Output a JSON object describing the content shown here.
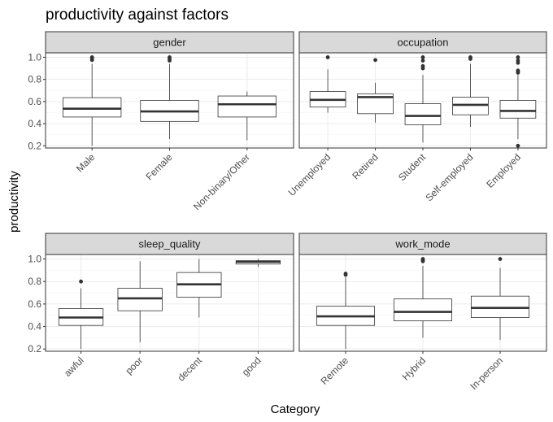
{
  "chart_data": {
    "type": "boxplot",
    "title": "productivity against factors",
    "xlabel": "Category",
    "ylabel": "productivity",
    "ylim": [
      0.18,
      1.04
    ],
    "yticks": [
      0.2,
      0.4,
      0.6,
      0.8,
      1.0
    ],
    "ytick_labels": [
      "0.2",
      "0.4",
      "0.6",
      "0.8",
      "1.0"
    ],
    "layout": "2x2 facets",
    "grid": true,
    "colors": {
      "strip_bg": "#d9d9d9",
      "grid_major": "#ebebeb",
      "grid_minor": "#f5f5f5",
      "panel_border": "#333333",
      "box_line": "#333333",
      "median": "#333333"
    },
    "facets": [
      {
        "name": "gender",
        "categories": [
          {
            "label": "Male",
            "whisker_low": 0.2,
            "q1": 0.46,
            "median": 0.535,
            "q3": 0.635,
            "whisker_high": 0.94,
            "outliers": [
              0.975,
              0.99,
              1.0
            ]
          },
          {
            "label": "Female",
            "whisker_low": 0.26,
            "q1": 0.42,
            "median": 0.51,
            "q3": 0.61,
            "whisker_high": 0.94,
            "outliers": [
              0.97,
              0.985,
              1.0
            ]
          },
          {
            "label": "Non-binary/Other",
            "whisker_low": 0.25,
            "q1": 0.46,
            "median": 0.575,
            "q3": 0.65,
            "whisker_high": 0.69,
            "outliers": []
          }
        ]
      },
      {
        "name": "occupation",
        "categories": [
          {
            "label": "Unemployed",
            "whisker_low": 0.5,
            "q1": 0.55,
            "median": 0.615,
            "q3": 0.69,
            "whisker_high": 0.89,
            "outliers": [
              1.0
            ]
          },
          {
            "label": "Retired",
            "whisker_low": 0.41,
            "q1": 0.49,
            "median": 0.64,
            "q3": 0.67,
            "whisker_high": 0.77,
            "outliers": [
              0.975
            ]
          },
          {
            "label": "Student",
            "whisker_low": 0.23,
            "q1": 0.39,
            "median": 0.47,
            "q3": 0.58,
            "whisker_high": 0.84,
            "outliers": [
              0.9,
              0.92,
              0.97,
              1.0
            ]
          },
          {
            "label": "Self-employed",
            "whisker_low": 0.37,
            "q1": 0.48,
            "median": 0.57,
            "q3": 0.64,
            "whisker_high": 0.94,
            "outliers": [
              0.985,
              1.0
            ]
          },
          {
            "label": "Employed",
            "whisker_low": 0.26,
            "q1": 0.45,
            "median": 0.515,
            "q3": 0.61,
            "whisker_high": 0.84,
            "outliers": [
              0.2,
              0.86,
              0.875,
              0.88,
              0.95,
              0.97,
              1.0
            ]
          }
        ]
      },
      {
        "name": "sleep_quality",
        "categories": [
          {
            "label": "awful",
            "whisker_low": 0.2,
            "q1": 0.41,
            "median": 0.48,
            "q3": 0.56,
            "whisker_high": 0.74,
            "outliers": [
              0.8
            ]
          },
          {
            "label": "poor",
            "whisker_low": 0.26,
            "q1": 0.54,
            "median": 0.65,
            "q3": 0.74,
            "whisker_high": 0.98,
            "outliers": []
          },
          {
            "label": "decent",
            "whisker_low": 0.48,
            "q1": 0.66,
            "median": 0.775,
            "q3": 0.88,
            "whisker_high": 1.0,
            "outliers": []
          },
          {
            "label": "good",
            "whisker_low": 0.93,
            "q1": 0.955,
            "median": 0.975,
            "q3": 0.985,
            "whisker_high": 1.0,
            "outliers": []
          }
        ]
      },
      {
        "name": "work_mode",
        "categories": [
          {
            "label": "Remote",
            "whisker_low": 0.2,
            "q1": 0.41,
            "median": 0.49,
            "q3": 0.58,
            "whisker_high": 0.84,
            "outliers": [
              0.86,
              0.87
            ]
          },
          {
            "label": "Hybrid",
            "whisker_low": 0.3,
            "q1": 0.45,
            "median": 0.53,
            "q3": 0.645,
            "whisker_high": 0.94,
            "outliers": [
              0.98,
              0.99,
              1.0
            ]
          },
          {
            "label": "In-person",
            "whisker_low": 0.28,
            "q1": 0.48,
            "median": 0.565,
            "q3": 0.67,
            "whisker_high": 0.92,
            "outliers": [
              1.0
            ]
          }
        ]
      }
    ]
  }
}
